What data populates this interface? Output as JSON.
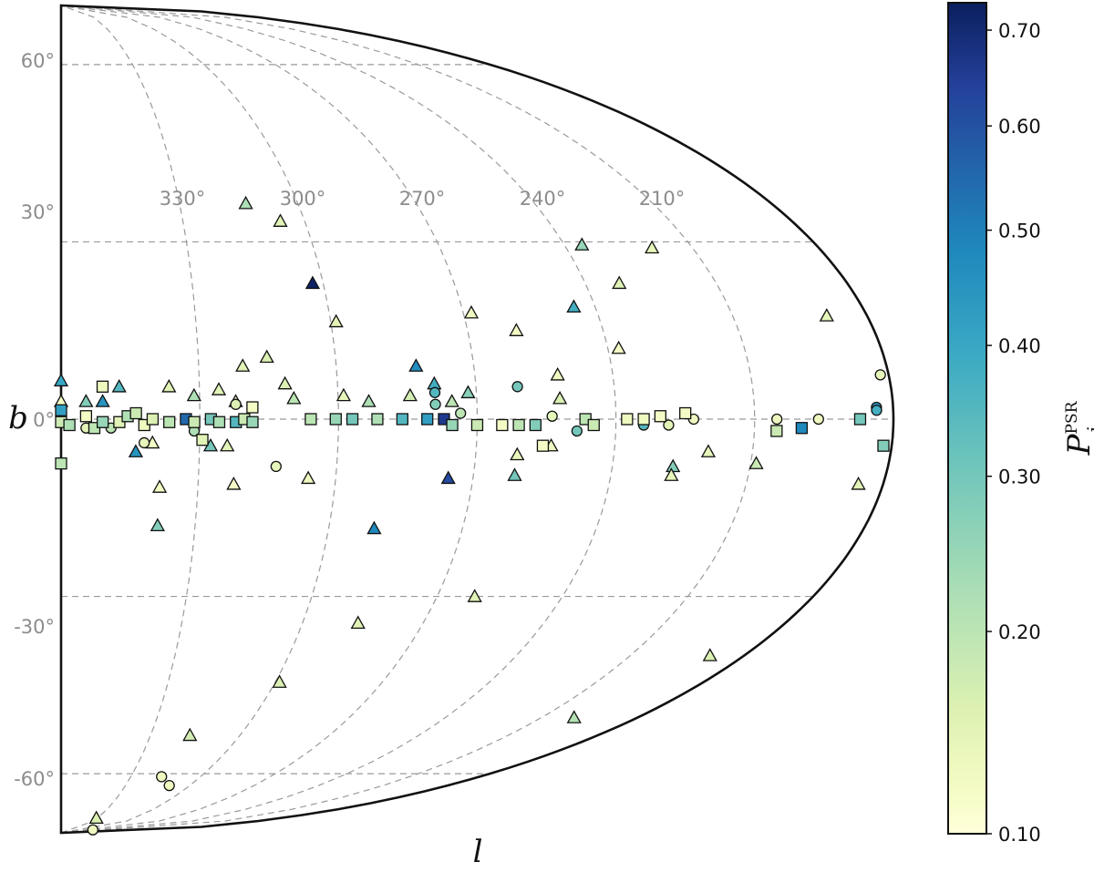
{
  "chart_data": {
    "type": "scatter",
    "projection": "half-aitoff (galactic longitude 180°–360°, latitude -70°–70°)",
    "xlabel": "l",
    "ylabel": "b",
    "b_range": [
      -70,
      70
    ],
    "l_range": [
      180,
      360
    ],
    "b_grid_labels": [
      "60°",
      "30°",
      "0°",
      "-30°",
      "-60°"
    ],
    "b_grid_values": [
      60,
      30,
      0,
      -30,
      -60
    ],
    "l_grid_labels": [
      "330°",
      "300°",
      "270°",
      "240°",
      "210°"
    ],
    "l_grid_values": [
      330,
      300,
      270,
      240,
      210
    ],
    "grid": true,
    "colorbar": {
      "label_main": "P",
      "label_sup": "PSR",
      "label_sub": "i",
      "min": 0.1,
      "max": 0.73,
      "tick_labels": [
        "0.70",
        "0.60",
        "0.50",
        "0.40",
        "0.30",
        "0.20",
        "0.10"
      ],
      "tick_values": [
        0.7,
        0.6,
        0.5,
        0.4,
        0.3,
        0.2,
        0.1
      ],
      "scale": "square-root",
      "colormap": [
        "#ffffd9",
        "#edf8b1",
        "#c7e9b4",
        "#7fcdbb",
        "#41b6c4",
        "#1d91c0",
        "#225ea8",
        "#253494",
        "#081d58"
      ]
    },
    "points": [
      {
        "l": 0.26,
        "b": 36.5,
        "m": "tri",
        "p": 0.22
      },
      {
        "l": 0.3,
        "b": 33.5,
        "m": "tri",
        "p": 0.15
      },
      {
        "l": 0.78,
        "b": 29.0,
        "m": "tri",
        "p": 0.14
      },
      {
        "l": 0.69,
        "b": 29.5,
        "m": "tri",
        "p": 0.25
      },
      {
        "l": 0.32,
        "b": 23.0,
        "m": "tri",
        "p": 0.72
      },
      {
        "l": 0.71,
        "b": 23.0,
        "m": "tri",
        "p": 0.15
      },
      {
        "l": 0.51,
        "b": 18.0,
        "m": "tri",
        "p": 0.13
      },
      {
        "l": 0.64,
        "b": 19.0,
        "m": "tri",
        "p": 0.38
      },
      {
        "l": 0.34,
        "b": 16.5,
        "m": "tri",
        "p": 0.15
      },
      {
        "l": 0.56,
        "b": 15.0,
        "m": "tri",
        "p": 0.12
      },
      {
        "l": 0.95,
        "b": 17.5,
        "m": "tri",
        "p": 0.14
      },
      {
        "l": 0.68,
        "b": 12.0,
        "m": "tri",
        "p": 0.12
      },
      {
        "l": 0.25,
        "b": 10.5,
        "m": "tri",
        "p": 0.16
      },
      {
        "l": 0.22,
        "b": 9.0,
        "m": "tri",
        "p": 0.15
      },
      {
        "l": 0.43,
        "b": 9.0,
        "m": "tri",
        "p": 0.47
      },
      {
        "l": 0.6,
        "b": 7.5,
        "m": "tri",
        "p": 0.13
      },
      {
        "l": 0.27,
        "b": 6.0,
        "m": "tri",
        "p": 0.16
      },
      {
        "l": 0.45,
        "b": 6.0,
        "m": "tri",
        "p": 0.38
      },
      {
        "l": 0.07,
        "b": 5.5,
        "m": "tri",
        "p": 0.35
      },
      {
        "l": 0.19,
        "b": 5.0,
        "m": "tri",
        "p": 0.15
      },
      {
        "l": 0.13,
        "b": 5.5,
        "m": "tri",
        "p": 0.15
      },
      {
        "l": 0.49,
        "b": 4.5,
        "m": "tri",
        "p": 0.27
      },
      {
        "l": 0.0,
        "b": 6.5,
        "m": "tri",
        "p": 0.4
      },
      {
        "l": 0.16,
        "b": 4.0,
        "m": "tri",
        "p": 0.22
      },
      {
        "l": 0.34,
        "b": 4.0,
        "m": "tri",
        "p": 0.14
      },
      {
        "l": 0.42,
        "b": 4.0,
        "m": "tri",
        "p": 0.17
      },
      {
        "l": 0.03,
        "b": 3.0,
        "m": "tri",
        "p": 0.28
      },
      {
        "l": 0.05,
        "b": 3.0,
        "m": "tri",
        "p": 0.45
      },
      {
        "l": 0.28,
        "b": 3.5,
        "m": "tri",
        "p": 0.2
      },
      {
        "l": 0.21,
        "b": 3.0,
        "m": "tri",
        "p": 0.16
      },
      {
        "l": 0.37,
        "b": 3.0,
        "m": "tri",
        "p": 0.22
      },
      {
        "l": 0.6,
        "b": 3.5,
        "m": "tri",
        "p": 0.16
      },
      {
        "l": 0.47,
        "b": 3.0,
        "m": "tri",
        "p": 0.2
      },
      {
        "l": 0.0,
        "b": 3.0,
        "m": "tri",
        "p": 0.12
      },
      {
        "l": 0.11,
        "b": -4.0,
        "m": "tri",
        "p": 0.12
      },
      {
        "l": 0.18,
        "b": -4.5,
        "m": "tri",
        "p": 0.3
      },
      {
        "l": 0.2,
        "b": -4.5,
        "m": "tri",
        "p": 0.15
      },
      {
        "l": 0.09,
        "b": -5.5,
        "m": "tri",
        "p": 0.45
      },
      {
        "l": 0.55,
        "b": -6.0,
        "m": "tri",
        "p": 0.14
      },
      {
        "l": 0.59,
        "b": -4.5,
        "m": "tri",
        "p": 0.13
      },
      {
        "l": 0.78,
        "b": -5.5,
        "m": "tri",
        "p": 0.14
      },
      {
        "l": 0.47,
        "b": -10.0,
        "m": "tri",
        "p": 0.62
      },
      {
        "l": 0.55,
        "b": -9.5,
        "m": "tri",
        "p": 0.3
      },
      {
        "l": 0.74,
        "b": -8.0,
        "m": "tri",
        "p": 0.28
      },
      {
        "l": 0.74,
        "b": -9.5,
        "m": "tri",
        "p": 0.14
      },
      {
        "l": 0.84,
        "b": -7.5,
        "m": "tri",
        "p": 0.18
      },
      {
        "l": 0.12,
        "b": -11.5,
        "m": "tri",
        "p": 0.12
      },
      {
        "l": 0.21,
        "b": -11.0,
        "m": "tri",
        "p": 0.12
      },
      {
        "l": 0.3,
        "b": -10.0,
        "m": "tri",
        "p": 0.13
      },
      {
        "l": 0.97,
        "b": -11.0,
        "m": "tri",
        "p": 0.15
      },
      {
        "l": 0.12,
        "b": -18.0,
        "m": "tri",
        "p": 0.28
      },
      {
        "l": 0.39,
        "b": -18.5,
        "m": "tri",
        "p": 0.48
      },
      {
        "l": 0.55,
        "b": -30.0,
        "m": "tri",
        "p": 0.15
      },
      {
        "l": 0.41,
        "b": -34.5,
        "m": "tri",
        "p": 0.15
      },
      {
        "l": 0.95,
        "b": -40.0,
        "m": "tri",
        "p": 0.16
      },
      {
        "l": 0.34,
        "b": -44.5,
        "m": "tri",
        "p": 0.16
      },
      {
        "l": 0.89,
        "b": -50.5,
        "m": "tri",
        "p": 0.21
      },
      {
        "l": 0.24,
        "b": -53.5,
        "m": "tri",
        "p": 0.17
      },
      {
        "l": 0.16,
        "b": -67.5,
        "m": "tri",
        "p": 0.16
      },
      {
        "l": 0.98,
        "b": 2.0,
        "m": "circ",
        "p": 0.45
      },
      {
        "l": 0.98,
        "b": 1.5,
        "m": "circ",
        "p": 0.38
      },
      {
        "l": 0.99,
        "b": 7.5,
        "m": "circ",
        "p": 0.14
      },
      {
        "l": 0.45,
        "b": 4.5,
        "m": "circ",
        "p": 0.35
      },
      {
        "l": 0.55,
        "b": 5.5,
        "m": "circ",
        "p": 0.3
      },
      {
        "l": 0.45,
        "b": 2.5,
        "m": "circ",
        "p": 0.28
      },
      {
        "l": 0.48,
        "b": 1.0,
        "m": "circ",
        "p": 0.2
      },
      {
        "l": 0.21,
        "b": 2.5,
        "m": "circ",
        "p": 0.16
      },
      {
        "l": 0.59,
        "b": 0.5,
        "m": "circ",
        "p": 0.14
      },
      {
        "l": 0.7,
        "b": -1.0,
        "m": "circ",
        "p": 0.35
      },
      {
        "l": 0.76,
        "b": 0.0,
        "m": "circ",
        "p": 0.13
      },
      {
        "l": 0.86,
        "b": 0.0,
        "m": "circ",
        "p": 0.13
      },
      {
        "l": 0.91,
        "b": 0.0,
        "m": "circ",
        "p": 0.13
      },
      {
        "l": 0.03,
        "b": -1.5,
        "m": "circ",
        "p": 0.15
      },
      {
        "l": 0.06,
        "b": -1.5,
        "m": "circ",
        "p": 0.2
      },
      {
        "l": 0.16,
        "b": -2.0,
        "m": "circ",
        "p": 0.22
      },
      {
        "l": 0.62,
        "b": -2.0,
        "m": "circ",
        "p": 0.3
      },
      {
        "l": 0.73,
        "b": -1.0,
        "m": "circ",
        "p": 0.15
      },
      {
        "l": 0.1,
        "b": -4.0,
        "m": "circ",
        "p": 0.14
      },
      {
        "l": 0.26,
        "b": -8.0,
        "m": "circ",
        "p": 0.14
      },
      {
        "l": 0.24,
        "b": -60.5,
        "m": "circ",
        "p": 0.13
      },
      {
        "l": 0.28,
        "b": -62.0,
        "m": "circ",
        "p": 0.13
      },
      {
        "l": 0.32,
        "b": -69.5,
        "m": "circ",
        "p": 0.13
      },
      {
        "l": 0.0,
        "b": 1.5,
        "m": "sq",
        "p": 0.42
      },
      {
        "l": 0.0,
        "b": -0.5,
        "m": "sq",
        "p": 0.18
      },
      {
        "l": 0.01,
        "b": -1.0,
        "m": "sq",
        "p": 0.22
      },
      {
        "l": 0.03,
        "b": 0.5,
        "m": "sq",
        "p": 0.12
      },
      {
        "l": 0.04,
        "b": -1.5,
        "m": "sq",
        "p": 0.2
      },
      {
        "l": 0.05,
        "b": -0.5,
        "m": "sq",
        "p": 0.25
      },
      {
        "l": 0.07,
        "b": -0.5,
        "m": "sq",
        "p": 0.15
      },
      {
        "l": 0.08,
        "b": 0.5,
        "m": "sq",
        "p": 0.22
      },
      {
        "l": 0.09,
        "b": 1.0,
        "m": "sq",
        "p": 0.18
      },
      {
        "l": 0.1,
        "b": -1.0,
        "m": "sq",
        "p": 0.13
      },
      {
        "l": 0.11,
        "b": 0.0,
        "m": "sq",
        "p": 0.16
      },
      {
        "l": 0.13,
        "b": -0.5,
        "m": "sq",
        "p": 0.2
      },
      {
        "l": 0.15,
        "b": 0.0,
        "m": "sq",
        "p": 0.55
      },
      {
        "l": 0.16,
        "b": -0.5,
        "m": "sq",
        "p": 0.18
      },
      {
        "l": 0.18,
        "b": 0.0,
        "m": "sq",
        "p": 0.3
      },
      {
        "l": 0.19,
        "b": -0.5,
        "m": "sq",
        "p": 0.22
      },
      {
        "l": 0.21,
        "b": -0.5,
        "m": "sq",
        "p": 0.35
      },
      {
        "l": 0.22,
        "b": 0.0,
        "m": "sq",
        "p": 0.18
      },
      {
        "l": 0.23,
        "b": -0.5,
        "m": "sq",
        "p": 0.25
      },
      {
        "l": 0.17,
        "b": -3.5,
        "m": "sq",
        "p": 0.15
      },
      {
        "l": 0.05,
        "b": 5.5,
        "m": "sq",
        "p": 0.13
      },
      {
        "l": 0.23,
        "b": 2.0,
        "m": "sq",
        "p": 0.12
      },
      {
        "l": 0.0,
        "b": -7.5,
        "m": "sq",
        "p": 0.2
      },
      {
        "l": 0.3,
        "b": 0.0,
        "m": "sq",
        "p": 0.2
      },
      {
        "l": 0.33,
        "b": 0.0,
        "m": "sq",
        "p": 0.25
      },
      {
        "l": 0.35,
        "b": 0.0,
        "m": "sq",
        "p": 0.3
      },
      {
        "l": 0.38,
        "b": 0.0,
        "m": "sq",
        "p": 0.22
      },
      {
        "l": 0.41,
        "b": 0.0,
        "m": "sq",
        "p": 0.35
      },
      {
        "l": 0.44,
        "b": 0.0,
        "m": "sq",
        "p": 0.42
      },
      {
        "l": 0.46,
        "b": 0.0,
        "m": "sq",
        "p": 0.66
      },
      {
        "l": 0.47,
        "b": -1.0,
        "m": "sq",
        "p": 0.25
      },
      {
        "l": 0.5,
        "b": -1.0,
        "m": "sq",
        "p": 0.18
      },
      {
        "l": 0.53,
        "b": -1.0,
        "m": "sq",
        "p": 0.12
      },
      {
        "l": 0.55,
        "b": -1.0,
        "m": "sq",
        "p": 0.2
      },
      {
        "l": 0.57,
        "b": -1.0,
        "m": "sq",
        "p": 0.28
      },
      {
        "l": 0.58,
        "b": -4.5,
        "m": "sq",
        "p": 0.12
      },
      {
        "l": 0.63,
        "b": 0.0,
        "m": "sq",
        "p": 0.2
      },
      {
        "l": 0.64,
        "b": -1.0,
        "m": "sq",
        "p": 0.18
      },
      {
        "l": 0.68,
        "b": 0.0,
        "m": "sq",
        "p": 0.13
      },
      {
        "l": 0.7,
        "b": 0.0,
        "m": "sq",
        "p": 0.13
      },
      {
        "l": 0.72,
        "b": 0.5,
        "m": "sq",
        "p": 0.12
      },
      {
        "l": 0.75,
        "b": 1.0,
        "m": "sq",
        "p": 0.12
      },
      {
        "l": 0.86,
        "b": -2.0,
        "m": "sq",
        "p": 0.18
      },
      {
        "l": 0.89,
        "b": -1.5,
        "m": "sq",
        "p": 0.48
      },
      {
        "l": 0.96,
        "b": 0.0,
        "m": "sq",
        "p": 0.3
      },
      {
        "l": 0.99,
        "b": -4.5,
        "m": "sq",
        "p": 0.28
      }
    ]
  }
}
